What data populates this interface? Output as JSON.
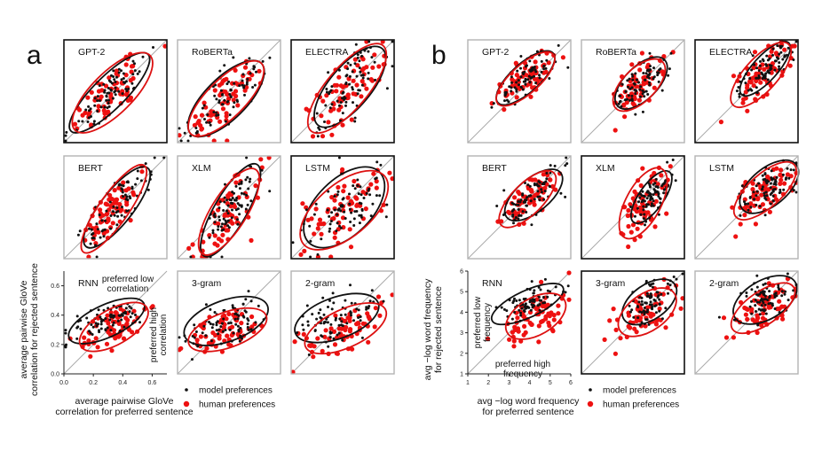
{
  "chart_data": {
    "type": "scatter",
    "colors": {
      "model": "#111111",
      "human": "#ee1111",
      "model_ellipse": "#111111",
      "human_ellipse": "#dd1111",
      "diagonal": "#aaaaaa",
      "frame_black": "#111111",
      "frame_gray": "#b3b3b3"
    },
    "legend": {
      "model": "model preferences",
      "human": "human preferences"
    },
    "panels": [
      {
        "id": "a",
        "label": "a",
        "axis_range": [
          0,
          0.7
        ],
        "xticks": [
          "0.0",
          "0.2",
          "0.4",
          "0.6"
        ],
        "yticks": [
          "0.0",
          "0.2",
          "0.4",
          "0.6"
        ],
        "xlabel_lines": [
          "average pairwise GloVe",
          "correlation for preferred sentence"
        ],
        "ylabel_lines": [
          "average pairwise GloVe",
          "correlation for rejected sentence"
        ],
        "annotations": {
          "top": [
            "preferred low",
            "correlation"
          ],
          "side": [
            "preferred high",
            "correlation"
          ]
        },
        "models": [
          {
            "name": "GPT-2",
            "frame": "black",
            "model_ellipse": {
              "cx": 0.31,
              "cy": 0.34,
              "rx": 0.37,
              "ry": 0.11,
              "angle": 45
            },
            "human_ellipse": {
              "cx": 0.33,
              "cy": 0.34,
              "rx": 0.36,
              "ry": 0.14,
              "angle": 45
            }
          },
          {
            "name": "RoBERTa",
            "frame": "gray",
            "model_ellipse": {
              "cx": 0.33,
              "cy": 0.3,
              "rx": 0.34,
              "ry": 0.14,
              "angle": 45
            },
            "human_ellipse": {
              "cx": 0.33,
              "cy": 0.3,
              "rx": 0.34,
              "ry": 0.13,
              "angle": 45
            }
          },
          {
            "name": "ELECTRA",
            "frame": "black",
            "model_ellipse": {
              "cx": 0.4,
              "cy": 0.38,
              "rx": 0.34,
              "ry": 0.14,
              "angle": 50
            },
            "human_ellipse": {
              "cx": 0.38,
              "cy": 0.37,
              "rx": 0.38,
              "ry": 0.14,
              "angle": 50
            }
          },
          {
            "name": "BERT",
            "frame": "gray",
            "model_ellipse": {
              "cx": 0.36,
              "cy": 0.35,
              "rx": 0.34,
              "ry": 0.11,
              "angle": 52
            },
            "human_ellipse": {
              "cx": 0.34,
              "cy": 0.34,
              "rx": 0.36,
              "ry": 0.1,
              "angle": 55
            }
          },
          {
            "name": "XLM",
            "frame": "gray",
            "model_ellipse": {
              "cx": 0.36,
              "cy": 0.33,
              "rx": 0.36,
              "ry": 0.11,
              "angle": 60
            },
            "human_ellipse": {
              "cx": 0.35,
              "cy": 0.32,
              "rx": 0.34,
              "ry": 0.12,
              "angle": 58
            }
          },
          {
            "name": "LSTM",
            "frame": "black",
            "model_ellipse": {
              "cx": 0.36,
              "cy": 0.35,
              "rx": 0.34,
              "ry": 0.19,
              "angle": 45
            },
            "human_ellipse": {
              "cx": 0.36,
              "cy": 0.33,
              "rx": 0.36,
              "ry": 0.18,
              "angle": 40
            }
          },
          {
            "name": "RNN",
            "frame": "none",
            "model_ellipse": {
              "cx": 0.29,
              "cy": 0.36,
              "rx": 0.28,
              "ry": 0.11,
              "angle": 25
            },
            "human_ellipse": {
              "cx": 0.34,
              "cy": 0.32,
              "rx": 0.26,
              "ry": 0.12,
              "angle": 30
            }
          },
          {
            "name": "3-gram",
            "frame": "gray",
            "model_ellipse": {
              "cx": 0.33,
              "cy": 0.36,
              "rx": 0.3,
              "ry": 0.14,
              "angle": 20
            },
            "human_ellipse": {
              "cx": 0.34,
              "cy": 0.3,
              "rx": 0.28,
              "ry": 0.12,
              "angle": 20
            }
          },
          {
            "name": "2-gram",
            "frame": "gray",
            "model_ellipse": {
              "cx": 0.31,
              "cy": 0.38,
              "rx": 0.3,
              "ry": 0.14,
              "angle": 20
            },
            "human_ellipse": {
              "cx": 0.37,
              "cy": 0.31,
              "rx": 0.3,
              "ry": 0.13,
              "angle": 25
            }
          }
        ]
      },
      {
        "id": "b",
        "label": "b",
        "axis_range": [
          1,
          6
        ],
        "xticks": [
          "1",
          "2",
          "3",
          "4",
          "5",
          "6"
        ],
        "yticks": [
          "1",
          "2",
          "3",
          "4",
          "5",
          "6"
        ],
        "xlabel_lines": [
          "avg −log word frequency",
          "for preferred sentence"
        ],
        "ylabel_lines": [
          "avg −log word frequency",
          "for rejected sentence"
        ],
        "annotations": {
          "side": [
            "preferred low",
            "frequency"
          ],
          "bottom": [
            "preferred high",
            "frequency"
          ]
        },
        "models": [
          {
            "name": "GPT-2",
            "frame": "gray",
            "model_ellipse": {
              "cx": 3.8,
              "cy": 4.15,
              "rx": 1.8,
              "ry": 0.7,
              "angle": 42
            },
            "human_ellipse": {
              "cx": 3.8,
              "cy": 4.1,
              "rx": 1.8,
              "ry": 0.7,
              "angle": 42
            }
          },
          {
            "name": "RoBERTa",
            "frame": "gray",
            "model_ellipse": {
              "cx": 3.9,
              "cy": 3.9,
              "rx": 1.6,
              "ry": 0.8,
              "angle": 45
            },
            "human_ellipse": {
              "cx": 3.8,
              "cy": 3.8,
              "rx": 1.6,
              "ry": 0.8,
              "angle": 45
            }
          },
          {
            "name": "ELECTRA",
            "frame": "black",
            "model_ellipse": {
              "cx": 4.4,
              "cy": 4.6,
              "rx": 1.7,
              "ry": 0.6,
              "angle": 48
            },
            "human_ellipse": {
              "cx": 4.2,
              "cy": 4.3,
              "rx": 2.0,
              "ry": 0.8,
              "angle": 48
            }
          },
          {
            "name": "BERT",
            "frame": "gray",
            "model_ellipse": {
              "cx": 4.2,
              "cy": 4.1,
              "rx": 1.7,
              "ry": 0.8,
              "angle": 40
            },
            "human_ellipse": {
              "cx": 3.9,
              "cy": 3.9,
              "rx": 1.8,
              "ry": 0.75,
              "angle": 45
            }
          },
          {
            "name": "XLM",
            "frame": "black",
            "model_ellipse": {
              "cx": 4.4,
              "cy": 4.0,
              "rx": 1.5,
              "ry": 0.6,
              "angle": 55
            },
            "human_ellipse": {
              "cx": 4.0,
              "cy": 3.7,
              "rx": 1.9,
              "ry": 0.85,
              "angle": 62
            }
          },
          {
            "name": "LSTM",
            "frame": "gray",
            "model_ellipse": {
              "cx": 4.6,
              "cy": 4.5,
              "rx": 1.7,
              "ry": 0.9,
              "angle": 40
            },
            "human_ellipse": {
              "cx": 4.4,
              "cy": 4.3,
              "rx": 1.9,
              "ry": 0.8,
              "angle": 42
            }
          },
          {
            "name": "RNN",
            "frame": "none",
            "model_ellipse": {
              "cx": 3.9,
              "cy": 4.4,
              "rx": 1.9,
              "ry": 0.65,
              "angle": 25
            },
            "human_ellipse": {
              "cx": 4.3,
              "cy": 3.8,
              "rx": 1.6,
              "ry": 0.9,
              "angle": 30
            }
          },
          {
            "name": "3-gram",
            "frame": "black",
            "model_ellipse": {
              "cx": 4.3,
              "cy": 4.5,
              "rx": 1.5,
              "ry": 0.85,
              "angle": 35
            },
            "human_ellipse": {
              "cx": 4.2,
              "cy": 4.0,
              "rx": 1.6,
              "ry": 0.9,
              "angle": 35
            }
          },
          {
            "name": "2-gram",
            "frame": "gray",
            "model_ellipse": {
              "cx": 4.4,
              "cy": 4.6,
              "rx": 1.7,
              "ry": 0.95,
              "angle": 30
            },
            "human_ellipse": {
              "cx": 4.3,
              "cy": 4.2,
              "rx": 1.8,
              "ry": 0.8,
              "angle": 35
            }
          }
        ]
      }
    ]
  }
}
